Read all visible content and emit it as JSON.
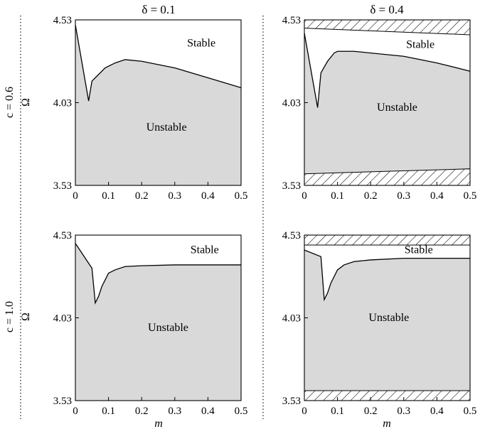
{
  "figure": {
    "column_titles": [
      "δ = 0.1",
      "δ = 0.4"
    ],
    "row_titles": [
      "c = 0.6",
      "c = 1.0"
    ],
    "ylabel": "Ω",
    "xlabel": "m"
  },
  "chart_data": [
    {
      "type": "area",
      "panel": "c=0.6, delta=0.1",
      "xlim": [
        0,
        0.5
      ],
      "ylim": [
        3.53,
        4.53
      ],
      "xticks": [
        "0",
        "0.1",
        "0.2",
        "0.3",
        "0.4",
        "0.5"
      ],
      "yticks": [
        "3.53",
        "4.03",
        "4.53"
      ],
      "labels": {
        "stable": "Stable",
        "unstable": "Unstable"
      },
      "boundary": {
        "x": [
          0,
          0.04,
          0.05,
          0.07,
          0.09,
          0.12,
          0.15,
          0.2,
          0.3,
          0.4,
          0.5
        ],
        "y": [
          4.5,
          4.04,
          4.16,
          4.2,
          4.24,
          4.27,
          4.29,
          4.28,
          4.24,
          4.18,
          4.12
        ]
      },
      "hatched_bands": [],
      "grid": false
    },
    {
      "type": "area",
      "panel": "c=0.6, delta=0.4",
      "xlim": [
        0,
        0.5
      ],
      "ylim": [
        3.53,
        4.53
      ],
      "xticks": [
        "0",
        "0.1",
        "0.2",
        "0.3",
        "0.4",
        "0.5"
      ],
      "yticks": [
        "3.53",
        "4.03",
        "4.53"
      ],
      "labels": {
        "stable": "Stable",
        "unstable": "Unstable"
      },
      "boundary": {
        "x": [
          0,
          0.04,
          0.05,
          0.07,
          0.09,
          0.1,
          0.15,
          0.2,
          0.3,
          0.4,
          0.5
        ],
        "y": [
          4.45,
          4.0,
          4.21,
          4.28,
          4.33,
          4.34,
          4.34,
          4.33,
          4.31,
          4.27,
          4.22
        ]
      },
      "hatched_bands": [
        {
          "x": [
            0,
            0.5
          ],
          "y_lower": [
            4.48,
            4.44
          ],
          "y_upper": [
            4.53,
            4.53
          ]
        },
        {
          "x": [
            0,
            0.5
          ],
          "y_lower": [
            3.53,
            3.53
          ],
          "y_upper": [
            3.6,
            3.63
          ]
        }
      ],
      "grid": false
    },
    {
      "type": "area",
      "panel": "c=1.0, delta=0.1",
      "xlim": [
        0,
        0.5
      ],
      "ylim": [
        3.53,
        4.53
      ],
      "xticks": [
        "0",
        "0.1",
        "0.2",
        "0.3",
        "0.4",
        "0.5"
      ],
      "yticks": [
        "3.53",
        "4.03",
        "4.53"
      ],
      "labels": {
        "stable": "Stable",
        "unstable": "Unstable"
      },
      "boundary": {
        "x": [
          0,
          0.05,
          0.06,
          0.07,
          0.08,
          0.1,
          0.12,
          0.15,
          0.2,
          0.3,
          0.5
        ],
        "y": [
          4.48,
          4.33,
          4.12,
          4.16,
          4.22,
          4.3,
          4.32,
          4.34,
          4.345,
          4.35,
          4.35
        ]
      },
      "hatched_bands": [],
      "grid": false
    },
    {
      "type": "area",
      "panel": "c=1.0, delta=0.4",
      "xlim": [
        0,
        0.5
      ],
      "ylim": [
        3.53,
        4.53
      ],
      "xticks": [
        "0",
        "0.1",
        "0.2",
        "0.3",
        "0.4",
        "0.5"
      ],
      "yticks": [
        "3.53",
        "4.03",
        "4.53"
      ],
      "labels": {
        "stable": "Stable",
        "unstable": "Unstable"
      },
      "boundary": {
        "x": [
          0,
          0.05,
          0.06,
          0.07,
          0.08,
          0.1,
          0.12,
          0.15,
          0.2,
          0.3,
          0.5
        ],
        "y": [
          4.44,
          4.4,
          4.14,
          4.18,
          4.24,
          4.32,
          4.35,
          4.37,
          4.38,
          4.39,
          4.39
        ]
      },
      "hatched_bands": [
        {
          "x": [
            0,
            0.5
          ],
          "y_lower": [
            4.47,
            4.47
          ],
          "y_upper": [
            4.53,
            4.53
          ]
        },
        {
          "x": [
            0,
            0.5
          ],
          "y_lower": [
            3.53,
            3.53
          ],
          "y_upper": [
            3.59,
            3.59
          ]
        }
      ],
      "grid": false
    }
  ]
}
